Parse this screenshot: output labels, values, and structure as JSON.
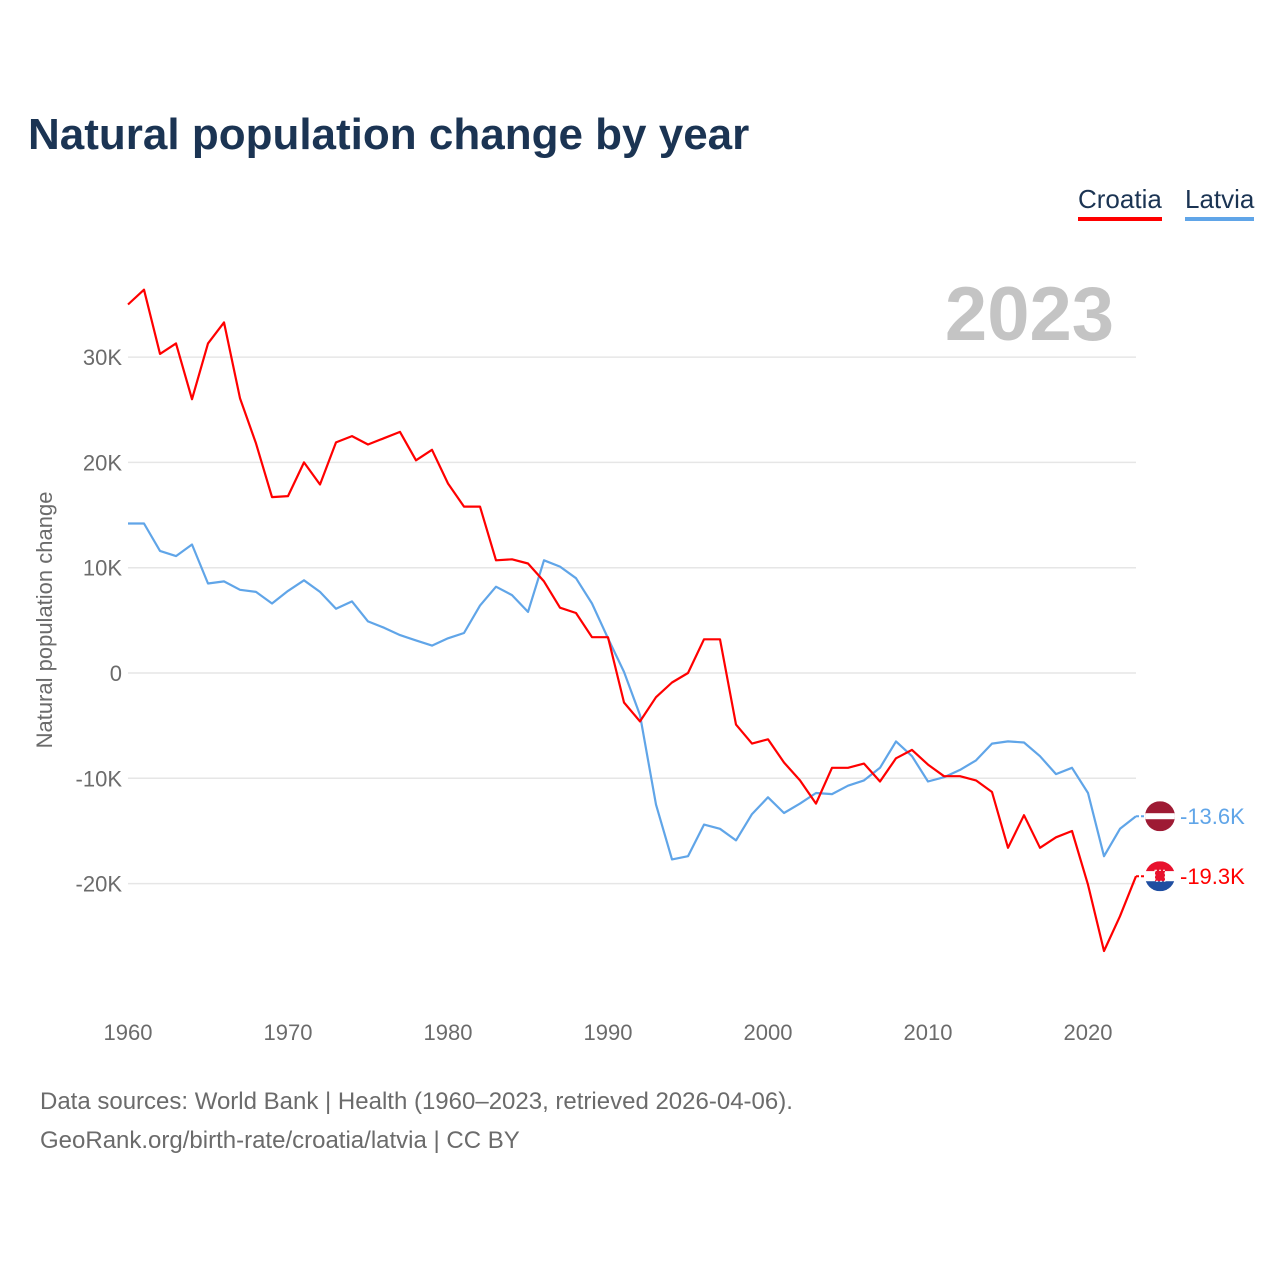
{
  "chart_data": {
    "type": "line",
    "title": "Natural population change by year",
    "xlabel": "",
    "ylabel": "Natural population change",
    "year_label": "2023",
    "xlim": [
      1960,
      2023
    ],
    "ylim": [
      -30,
      37
    ],
    "xticks": [
      1960,
      1970,
      1980,
      1990,
      2000,
      2010,
      2020
    ],
    "yticks": [
      {
        "v": 30,
        "label": "30K"
      },
      {
        "v": 20,
        "label": "20K"
      },
      {
        "v": 10,
        "label": "10K"
      },
      {
        "v": 0,
        "label": "0"
      },
      {
        "v": -10,
        "label": "-10K"
      },
      {
        "v": -20,
        "label": "-20K"
      }
    ],
    "grid": true,
    "legend_position": "top-right",
    "units": "thousands",
    "x": [
      1960,
      1961,
      1962,
      1963,
      1964,
      1965,
      1966,
      1967,
      1968,
      1969,
      1970,
      1971,
      1972,
      1973,
      1974,
      1975,
      1976,
      1977,
      1978,
      1979,
      1980,
      1981,
      1982,
      1983,
      1984,
      1985,
      1986,
      1987,
      1988,
      1989,
      1990,
      1991,
      1992,
      1993,
      1994,
      1995,
      1996,
      1997,
      1998,
      1999,
      2000,
      2001,
      2002,
      2003,
      2004,
      2005,
      2006,
      2007,
      2008,
      2009,
      2010,
      2011,
      2012,
      2013,
      2014,
      2015,
      2016,
      2017,
      2018,
      2019,
      2020,
      2021,
      2022,
      2023
    ],
    "series": [
      {
        "name": "Croatia",
        "color": "#ff0000",
        "end_label": "-19.3K",
        "flag": "croatia-flag",
        "values": [
          35.0,
          36.4,
          30.3,
          31.3,
          26.0,
          31.3,
          33.3,
          26.1,
          21.8,
          16.7,
          16.8,
          20.0,
          17.9,
          21.9,
          22.5,
          21.7,
          22.3,
          22.9,
          20.2,
          21.2,
          18.0,
          15.8,
          15.8,
          10.7,
          10.8,
          10.4,
          8.7,
          6.2,
          5.7,
          3.4,
          3.4,
          -2.8,
          -4.6,
          -2.3,
          -0.9,
          0.0,
          3.2,
          3.2,
          -4.9,
          -6.7,
          -6.3,
          -8.5,
          -10.2,
          -12.4,
          -9.0,
          -9.0,
          -8.6,
          -10.3,
          -8.1,
          -7.3,
          -8.7,
          -9.8,
          -9.8,
          -10.2,
          -11.3,
          -16.6,
          -13.5,
          -16.6,
          -15.6,
          -15.0,
          -20.1,
          -26.4,
          -23.1,
          -19.3
        ]
      },
      {
        "name": "Latvia",
        "color": "#60a5e8",
        "end_label": "-13.6K",
        "flag": "latvia-flag",
        "values": [
          14.2,
          14.2,
          11.6,
          11.1,
          12.2,
          8.5,
          8.7,
          7.9,
          7.7,
          6.6,
          7.8,
          8.8,
          7.7,
          6.1,
          6.8,
          4.9,
          4.3,
          3.6,
          3.1,
          2.6,
          3.3,
          3.8,
          6.4,
          8.2,
          7.4,
          5.8,
          10.7,
          10.1,
          9.0,
          6.6,
          3.3,
          0.1,
          -4.0,
          -12.5,
          -17.7,
          -17.4,
          -14.4,
          -14.8,
          -15.9,
          -13.4,
          -11.8,
          -13.3,
          -12.4,
          -11.4,
          -11.5,
          -10.7,
          -10.2,
          -9.0,
          -6.5,
          -7.9,
          -10.3,
          -9.9,
          -9.2,
          -8.3,
          -6.7,
          -6.5,
          -6.6,
          -7.9,
          -9.6,
          -9.0,
          -11.4,
          -17.4,
          -14.8,
          -13.6
        ]
      }
    ]
  },
  "footer": {
    "source": "Data sources: World Bank | Health (1960–2023, retrieved 2026-04-06).",
    "credit": "GeoRank.org/birth-rate/croatia/latvia | CC BY"
  }
}
